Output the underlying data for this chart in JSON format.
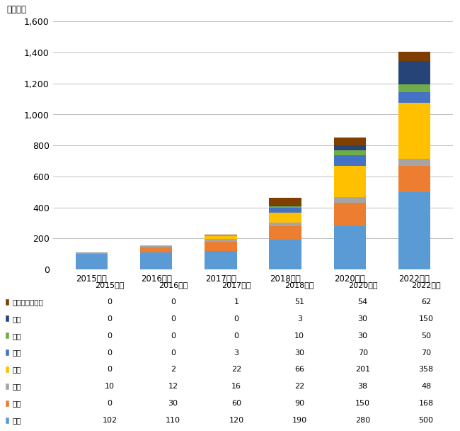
{
  "categories": [
    "2015年度",
    "2016年度",
    "2017年度",
    "2018年度",
    "2020年度",
    "2022年度"
  ],
  "series": [
    {
      "name": "農業",
      "color": "#5B9BD5",
      "values": [
        102,
        110,
        120,
        190,
        280,
        500
      ]
    },
    {
      "name": "測量",
      "color": "#ED7D31",
      "values": [
        0,
        30,
        60,
        90,
        150,
        168
      ]
    },
    {
      "name": "空撮",
      "color": "#A5A5A5",
      "values": [
        10,
        12,
        16,
        22,
        38,
        48
      ]
    },
    {
      "name": "検査",
      "color": "#FFC000",
      "values": [
        0,
        2,
        22,
        66,
        201,
        358
      ]
    },
    {
      "name": "防犯",
      "color": "#4472C4",
      "values": [
        0,
        0,
        3,
        30,
        70,
        70
      ]
    },
    {
      "name": "物流",
      "color": "#70AD47",
      "values": [
        0,
        0,
        0,
        10,
        30,
        50
      ]
    },
    {
      "name": "屋内",
      "color": "#264478",
      "values": [
        0,
        0,
        0,
        3,
        30,
        150
      ]
    },
    {
      "name": "その他サービス",
      "color": "#7F3F00",
      "values": [
        0,
        0,
        1,
        51,
        54,
        62
      ]
    }
  ],
  "ylabel": "（億円）",
  "ylim": [
    0,
    1600
  ],
  "yticks": [
    0,
    200,
    400,
    600,
    800,
    1000,
    1200,
    1400,
    1600
  ],
  "background_color": "#FFFFFF",
  "grid_color": "#C0C0C0",
  "bar_width": 0.5,
  "fig_width": 6.5,
  "fig_height": 6.08,
  "dpi": 100
}
